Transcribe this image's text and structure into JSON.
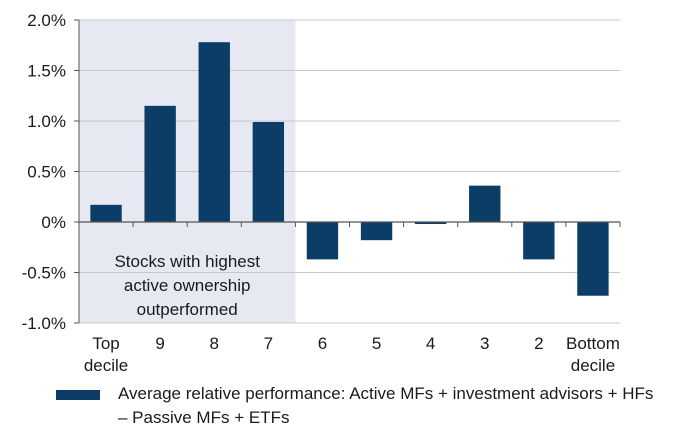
{
  "chart_data": {
    "type": "bar",
    "categories": [
      "Top decile",
      "9",
      "8",
      "7",
      "6",
      "5",
      "4",
      "3",
      "2",
      "Bottom decile"
    ],
    "category_lines": [
      [
        "Top",
        "decile"
      ],
      [
        "9"
      ],
      [
        "8"
      ],
      [
        "7"
      ],
      [
        "6"
      ],
      [
        "5"
      ],
      [
        "4"
      ],
      [
        "3"
      ],
      [
        "2"
      ],
      [
        "Bottom",
        "decile"
      ]
    ],
    "series": [
      {
        "name": "Average relative performance: Active MFs + investment advisors + HFs – Passive MFs + ETFs",
        "values": [
          0.17,
          1.15,
          1.78,
          0.99,
          -0.37,
          -0.18,
          -0.02,
          0.36,
          -0.37,
          -0.73
        ]
      }
    ],
    "ylim": [
      -1.0,
      2.0
    ],
    "y_ticks": [
      2.0,
      1.5,
      1.0,
      0.5,
      0.0,
      -0.5,
      -1.0
    ],
    "y_tick_labels": [
      "2.0%",
      "1.5%",
      "1.0%",
      "0.5%",
      "0%",
      "-0.5%",
      "-1.0%"
    ],
    "grid": true,
    "highlight_region": {
      "categories": [
        "Top decile",
        "9",
        "8",
        "7"
      ],
      "color": "#e6e8f2"
    },
    "annotation_lines": [
      "Stocks with highest",
      "active ownership",
      "outperformed"
    ],
    "legend_position": "bottom",
    "bar_color": "#0b3d66",
    "grid_color": "#c8c8c8"
  },
  "legend": {
    "label": "Average relative performance: Active MFs + investment advisors + HFs – Passive MFs + ETFs"
  }
}
